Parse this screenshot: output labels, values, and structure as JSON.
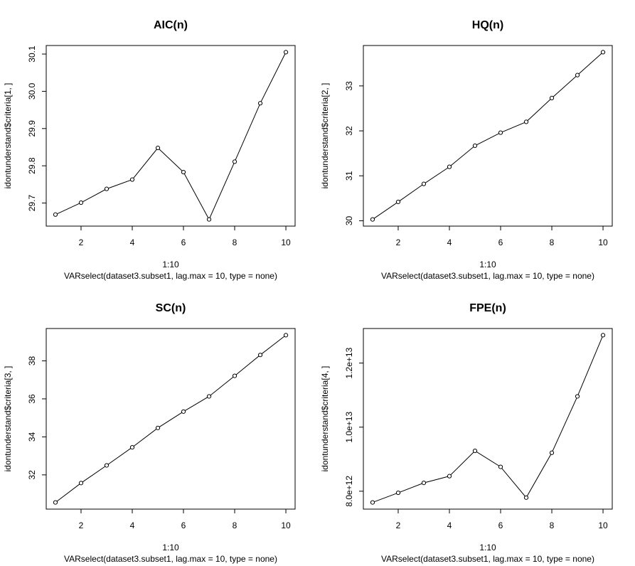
{
  "chart_data": [
    {
      "type": "line",
      "title": "AIC(n)",
      "xlabel": "1:10",
      "sublabel": "VARselect(dataset3.subset1, lag.max = 10, type = none)",
      "ylabel": "idontunderstand$criteria[1, ]",
      "x": [
        1,
        2,
        3,
        4,
        5,
        6,
        7,
        8,
        9,
        10
      ],
      "y": [
        29.669,
        29.701,
        29.738,
        29.763,
        29.848,
        29.783,
        29.656,
        29.811,
        29.968,
        30.105
      ],
      "xlim": [
        1,
        10
      ],
      "ylim": [
        29.656,
        30.105
      ],
      "xticks": [
        2,
        4,
        6,
        8,
        10
      ],
      "xtick_labels": [
        "2",
        "4",
        "6",
        "8",
        "10"
      ],
      "yticks": [
        29.7,
        29.8,
        29.9,
        30.0,
        30.1
      ],
      "ytick_labels": [
        "29.7",
        "29.8",
        "29.9",
        "30.0",
        "30.1"
      ]
    },
    {
      "type": "line",
      "title": "HQ(n)",
      "xlabel": "1:10",
      "sublabel": "VARselect(dataset3.subset1, lag.max = 10, type = none)",
      "ylabel": "idontunderstand$criteria[2, ]",
      "x": [
        1,
        2,
        3,
        4,
        5,
        6,
        7,
        8,
        9,
        10
      ],
      "y": [
        30.03,
        30.42,
        30.82,
        31.2,
        31.67,
        31.96,
        32.2,
        32.73,
        33.24,
        33.75
      ],
      "xlim": [
        1,
        10
      ],
      "ylim": [
        30.03,
        33.75
      ],
      "xticks": [
        2,
        4,
        6,
        8,
        10
      ],
      "xtick_labels": [
        "2",
        "4",
        "6",
        "8",
        "10"
      ],
      "yticks": [
        30,
        31,
        32,
        33
      ],
      "ytick_labels": [
        "30",
        "31",
        "32",
        "33"
      ]
    },
    {
      "type": "line",
      "title": "SC(n)",
      "xlabel": "1:10",
      "sublabel": "VARselect(dataset3.subset1, lag.max = 10, type = none)",
      "ylabel": "idontunderstand$criteria[3, ]",
      "x": [
        1,
        2,
        3,
        4,
        5,
        6,
        7,
        8,
        9,
        10
      ],
      "y": [
        30.55,
        31.57,
        32.5,
        33.45,
        34.47,
        35.33,
        36.13,
        37.21,
        38.31,
        39.35
      ],
      "xlim": [
        1,
        10
      ],
      "ylim": [
        30.55,
        39.35
      ],
      "xticks": [
        2,
        4,
        6,
        8,
        10
      ],
      "xtick_labels": [
        "2",
        "4",
        "6",
        "8",
        "10"
      ],
      "yticks": [
        32,
        34,
        36,
        38
      ],
      "ytick_labels": [
        "32",
        "34",
        "36",
        "38"
      ]
    },
    {
      "type": "line",
      "title": "FPE(n)",
      "xlabel": "1:10",
      "sublabel": "VARselect(dataset3.subset1, lag.max = 10, type = none)",
      "ylabel": "idontunderstand$criteria[4, ]",
      "x": [
        1,
        2,
        3,
        4,
        5,
        6,
        7,
        8,
        9,
        10
      ],
      "y": [
        7650000000000.0,
        7950000000000.0,
        8260000000000.0,
        8470000000000.0,
        9260000000000.0,
        8760000000000.0,
        7800000000000.0,
        9200000000000.0,
        10960000000000.0,
        12870000000000.0
      ],
      "xlim": [
        1,
        10
      ],
      "ylim": [
        7650000000000.0,
        12870000000000.0
      ],
      "xticks": [
        2,
        4,
        6,
        8,
        10
      ],
      "xtick_labels": [
        "2",
        "4",
        "6",
        "8",
        "10"
      ],
      "yticks": [
        8000000000000.0,
        10000000000000.0,
        12000000000000.0
      ],
      "ytick_labels": [
        "8.0e+12",
        "1.0e+13",
        "1.2e+13"
      ]
    }
  ]
}
